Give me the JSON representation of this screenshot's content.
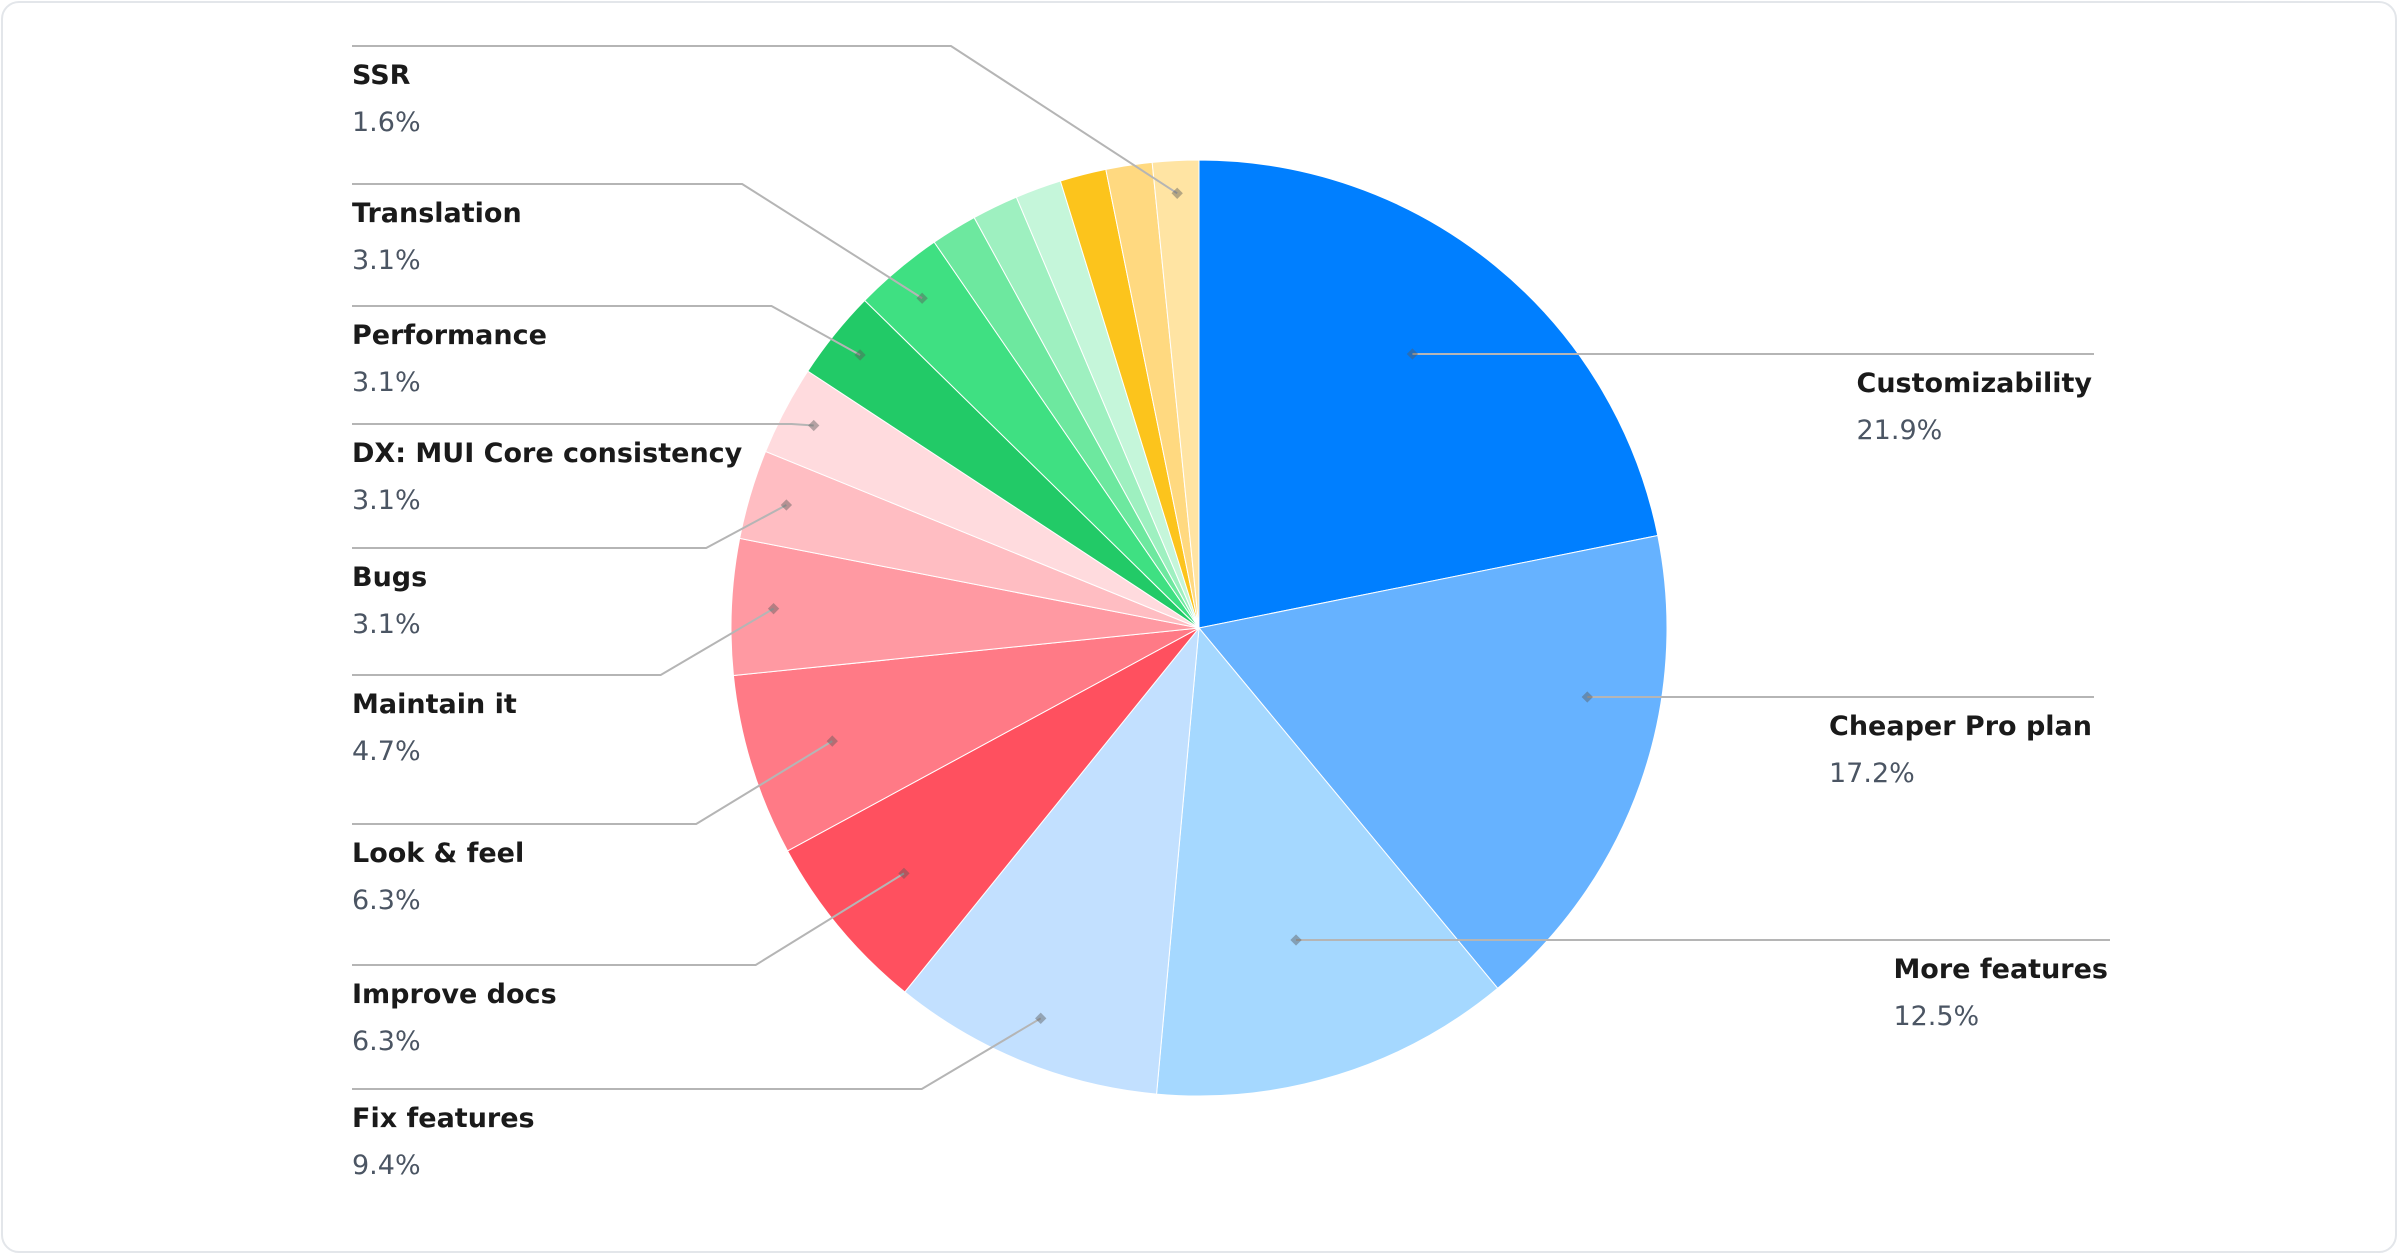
{
  "chart_data": {
    "type": "pie",
    "start_angle": "12 o'clock",
    "direction": "clockwise",
    "slices": [
      {
        "label": "Customizability",
        "value": 21.9,
        "display": "21.9%",
        "color": "#007FFF",
        "labeled": true
      },
      {
        "label": "Cheaper Pro plan",
        "value": 17.2,
        "display": "17.2%",
        "color": "#66B2FF",
        "labeled": true
      },
      {
        "label": "More features",
        "value": 12.5,
        "display": "12.5%",
        "color": "#A5D8FF",
        "labeled": true
      },
      {
        "label": "Fix features",
        "value": 9.4,
        "display": "9.4%",
        "color": "#C2E0FF",
        "labeled": true
      },
      {
        "label": "Improve docs",
        "value": 6.3,
        "display": "6.3%",
        "color": "#FF505F",
        "labeled": true
      },
      {
        "label": "Look & feel",
        "value": 6.3,
        "display": "6.3%",
        "color": "#FF7A86",
        "labeled": true
      },
      {
        "label": "Maintain it",
        "value": 4.7,
        "display": "4.7%",
        "color": "#FF99A2",
        "labeled": true
      },
      {
        "label": "Bugs",
        "value": 3.1,
        "display": "3.1%",
        "color": "#FFBDC2",
        "labeled": true
      },
      {
        "label": "DX: MUI Core consistency",
        "value": 3.1,
        "display": "3.1%",
        "color": "#FFDBDE",
        "labeled": true
      },
      {
        "label": "Performance",
        "value": 3.1,
        "display": "3.1%",
        "color": "#22CA67",
        "labeled": true
      },
      {
        "label": "Translation",
        "value": 3.1,
        "display": "3.1%",
        "color": "#3FE082",
        "labeled": true
      },
      {
        "label": "",
        "value": 1.6,
        "display": "",
        "color": "#6DE89F",
        "labeled": false
      },
      {
        "label": "",
        "value": 1.6,
        "display": "",
        "color": "#9EF0C0",
        "labeled": false
      },
      {
        "label": "",
        "value": 1.6,
        "display": "",
        "color": "#C5F6DA",
        "labeled": false
      },
      {
        "label": "",
        "value": 1.6,
        "display": "",
        "color": "#FCC41C",
        "labeled": false
      },
      {
        "label": "",
        "value": 1.6,
        "display": "",
        "color": "#FFD980",
        "labeled": false
      },
      {
        "label": "SSR",
        "value": 1.6,
        "display": "1.6%",
        "color": "#FFE4A3",
        "labeled": true
      }
    ],
    "legend": "leader-line labels, right side for first three slices, left side for the rest"
  }
}
